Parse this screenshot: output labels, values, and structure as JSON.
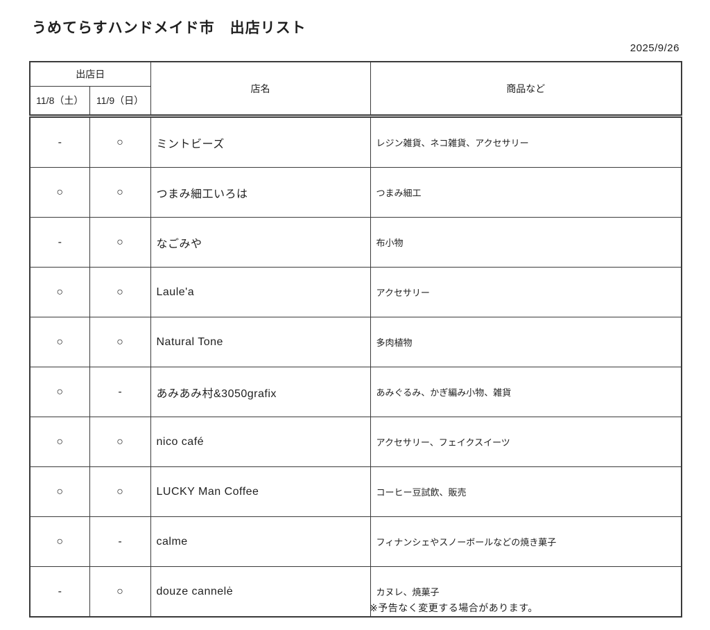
{
  "page": {
    "title": "うめてらすハンドメイド市　出店リスト",
    "date": "2025/9/26",
    "footnote": "※予告なく変更する場合があります。"
  },
  "table": {
    "header": {
      "dates_group": "出店日",
      "date_col_1": "11/8（土）",
      "date_col_2": "11/9（日）",
      "shop": "店名",
      "products": "商品など"
    },
    "marks": {
      "open": "○",
      "closed": "-"
    },
    "rows": [
      {
        "d1": "-",
        "d2": "○",
        "shop": "ミントビーズ",
        "products": "レジン雑貨、ネコ雑貨、アクセサリー"
      },
      {
        "d1": "○",
        "d2": "○",
        "shop": "つまみ細工いろは",
        "products": "つまみ細工"
      },
      {
        "d1": "-",
        "d2": "○",
        "shop": "なごみや",
        "products": "布小物"
      },
      {
        "d1": "○",
        "d2": "○",
        "shop": "Laule'a",
        "products": "アクセサリー"
      },
      {
        "d1": "○",
        "d2": "○",
        "shop": "Natural Tone",
        "products": "多肉植物"
      },
      {
        "d1": "○",
        "d2": "-",
        "shop": "あみあみ村&3050grafix",
        "products": "あみぐるみ、かぎ編み小物、雑貨"
      },
      {
        "d1": "○",
        "d2": "○",
        "shop": "nico café",
        "products": "アクセサリー、フェイクスイーツ"
      },
      {
        "d1": "○",
        "d2": "○",
        "shop": "LUCKY Man Coffee",
        "products": "コーヒー豆試飲、販売"
      },
      {
        "d1": "○",
        "d2": "-",
        "shop": "calme",
        "products": "フィナンシェやスノーボールなどの焼き菓子"
      },
      {
        "d1": "-",
        "d2": "○",
        "shop": "douze cannelė",
        "products": "カヌレ、焼菓子"
      }
    ]
  },
  "colors": {
    "text": "#1f1f1f",
    "border": "#3a3a3a",
    "background": "#ffffff"
  }
}
